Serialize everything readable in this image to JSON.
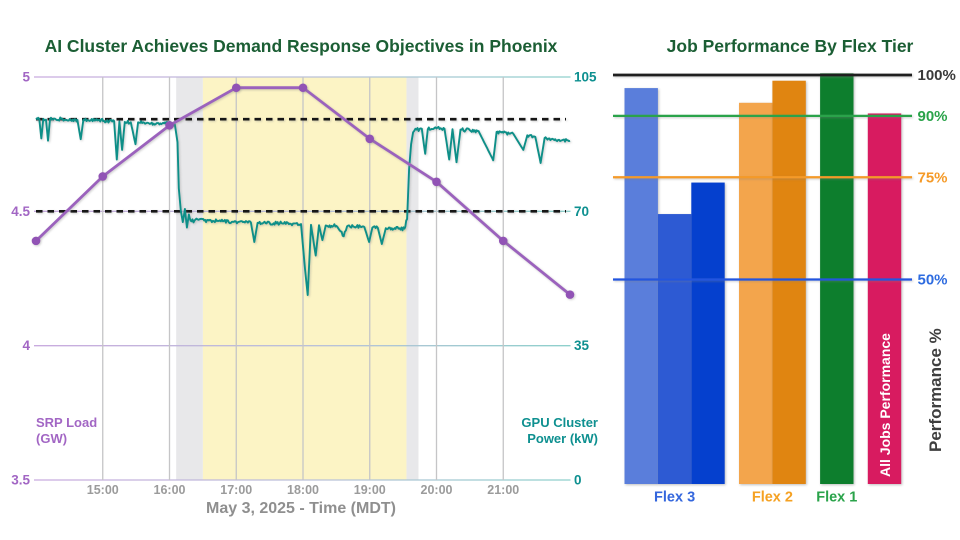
{
  "page": {
    "background": "#ffffff"
  },
  "chart_data": [
    {
      "type": "line",
      "title": "AI Cluster Achieves Demand Response Objectives in Phoenix",
      "title_color": "#1b5e34",
      "x_axis": {
        "title": "May 3, 2025 - Time (MDT)",
        "range_hours": [
          14,
          22
        ],
        "ticks": [
          {
            "hour": 15,
            "label": "15:00"
          },
          {
            "hour": 16,
            "label": "16:00"
          },
          {
            "hour": 17,
            "label": "17:00"
          },
          {
            "hour": 18,
            "label": "18:00"
          },
          {
            "hour": 19,
            "label": "19:00"
          },
          {
            "hour": 20,
            "label": "20:00"
          },
          {
            "hour": 21,
            "label": "21:00"
          }
        ],
        "tick_color": "#9b9b9b"
      },
      "left_axis": {
        "label1": "SRP Load",
        "label2": "(GW)",
        "color": "#a266c4",
        "range": [
          3.5,
          5
        ],
        "ticks": [
          {
            "v": 5,
            "label": "5"
          },
          {
            "v": 4.5,
            "label": "4.5"
          },
          {
            "v": 4,
            "label": "4"
          },
          {
            "v": 3.5,
            "label": "3.5"
          }
        ]
      },
      "right_axis": {
        "label1": "GPU Cluster",
        "label2": "Power (kW)",
        "color": "#0e9090",
        "range": [
          0,
          105
        ],
        "ticks": [
          {
            "v": 105,
            "label": "105"
          },
          {
            "v": 70,
            "label": "70"
          },
          {
            "v": 35,
            "label": "35"
          },
          {
            "v": 0,
            "label": "0"
          }
        ]
      },
      "bands": [
        {
          "from_hour": 16.1,
          "to_hour": 16.5,
          "color": "#e8e8ea"
        },
        {
          "from_hour": 16.5,
          "to_hour": 19.55,
          "color": "#fcf4c5"
        },
        {
          "from_hour": 19.55,
          "to_hour": 19.73,
          "color": "#e8e8ea"
        }
      ],
      "threshold_lines_kw": [
        94,
        70
      ],
      "series": [
        {
          "name": "SRP Load (GW)",
          "axis": "left",
          "color": "#9b62bd",
          "marker_color": "#9153b5",
          "x_hours": [
            14,
            15,
            16,
            17,
            18,
            19,
            20,
            21,
            22
          ],
          "values_gw": [
            4.39,
            4.63,
            4.82,
            4.96,
            4.96,
            4.77,
            4.61,
            4.39,
            4.19
          ]
        },
        {
          "name": "GPU Cluster Power (kW)",
          "axis": "right",
          "color": "#0e8f88",
          "noise_kw": 0.45,
          "points_hour_kw": [
            [
              14.0,
              94.3
            ],
            [
              14.05,
              94.0
            ],
            [
              14.08,
              89.0
            ],
            [
              14.11,
              94.1
            ],
            [
              14.15,
              93.9
            ],
            [
              14.18,
              88.4
            ],
            [
              14.21,
              94.0
            ],
            [
              14.3,
              93.9
            ],
            [
              14.38,
              94.1
            ],
            [
              14.46,
              93.8
            ],
            [
              14.55,
              93.9
            ],
            [
              14.62,
              93.8
            ],
            [
              14.67,
              88.8
            ],
            [
              14.71,
              93.9
            ],
            [
              14.82,
              93.7
            ],
            [
              14.92,
              93.7
            ],
            [
              15.02,
              93.6
            ],
            [
              15.1,
              93.5
            ],
            [
              15.17,
              93.5
            ],
            [
              15.21,
              83.5
            ],
            [
              15.25,
              93.4
            ],
            [
              15.29,
              86.0
            ],
            [
              15.33,
              93.3
            ],
            [
              15.42,
              93.2
            ],
            [
              15.49,
              87.5
            ],
            [
              15.53,
              93.2
            ],
            [
              15.62,
              93.1
            ],
            [
              15.72,
              92.9
            ],
            [
              15.82,
              93.0
            ],
            [
              15.92,
              92.9
            ],
            [
              16.02,
              93.0
            ],
            [
              16.08,
              92.7
            ],
            [
              16.12,
              88.0
            ],
            [
              16.14,
              76.0
            ],
            [
              16.17,
              70.2
            ],
            [
              16.2,
              67.2
            ],
            [
              16.23,
              70.6
            ],
            [
              16.26,
              65.8
            ],
            [
              16.29,
              69.2
            ],
            [
              16.33,
              67.4
            ],
            [
              16.42,
              67.9
            ],
            [
              16.52,
              67.6
            ],
            [
              16.65,
              67.5
            ],
            [
              16.8,
              67.4
            ],
            [
              16.95,
              67.3
            ],
            [
              17.1,
              67.2
            ],
            [
              17.22,
              67.1
            ],
            [
              17.27,
              62.0
            ],
            [
              17.32,
              67.0
            ],
            [
              17.5,
              67.0
            ],
            [
              17.68,
              66.9
            ],
            [
              17.85,
              66.8
            ],
            [
              17.97,
              66.7
            ],
            [
              18.03,
              55.0
            ],
            [
              18.07,
              48.2
            ],
            [
              18.12,
              66.5
            ],
            [
              18.19,
              58.5
            ],
            [
              18.24,
              66.4
            ],
            [
              18.29,
              62.5
            ],
            [
              18.34,
              66.3
            ],
            [
              18.5,
              66.2
            ],
            [
              18.61,
              63.5
            ],
            [
              18.66,
              66.1
            ],
            [
              18.8,
              66.0
            ],
            [
              18.92,
              65.9
            ],
            [
              18.99,
              62.0
            ],
            [
              19.04,
              65.8
            ],
            [
              19.12,
              65.7
            ],
            [
              19.18,
              61.5
            ],
            [
              19.24,
              65.6
            ],
            [
              19.33,
              65.6
            ],
            [
              19.43,
              65.5
            ],
            [
              19.52,
              65.5
            ],
            [
              19.56,
              68.0
            ],
            [
              19.59,
              81.0
            ],
            [
              19.62,
              87.5
            ],
            [
              19.65,
              90.6
            ],
            [
              19.7,
              91.3
            ],
            [
              19.78,
              91.5
            ],
            [
              19.83,
              85.0
            ],
            [
              19.87,
              91.4
            ],
            [
              20.0,
              91.6
            ],
            [
              20.12,
              91.5
            ],
            [
              20.19,
              83.5
            ],
            [
              20.24,
              91.4
            ],
            [
              20.3,
              82.8
            ],
            [
              20.36,
              91.3
            ],
            [
              20.5,
              91.1
            ],
            [
              20.63,
              90.9
            ],
            [
              20.85,
              83.3
            ],
            [
              20.9,
              90.7
            ],
            [
              21.0,
              90.5
            ],
            [
              21.15,
              90.2
            ],
            [
              21.3,
              86.0
            ],
            [
              21.36,
              89.8
            ],
            [
              21.48,
              89.4
            ],
            [
              21.56,
              82.6
            ],
            [
              21.62,
              89.1
            ],
            [
              21.75,
              88.8
            ],
            [
              21.88,
              88.5
            ],
            [
              22.0,
              88.4
            ]
          ]
        }
      ]
    },
    {
      "type": "bar",
      "title": "Job Performance By Flex Tier",
      "title_color": "#1b5e34",
      "y_label": "Performance %",
      "all_jobs_label": "All Jobs Performance",
      "ylim": [
        0,
        100
      ],
      "ref_lines": [
        {
          "value": 100,
          "label": "100%",
          "line_color": "#1f1f1f",
          "label_color": "#3a3a3a"
        },
        {
          "value": 90,
          "label": "90%",
          "line_color": "#2aa34a",
          "label_color": "#2aa34a"
        },
        {
          "value": 75,
          "label": "75%",
          "line_color": "#f59a28",
          "label_color": "#f59a28"
        },
        {
          "value": 50,
          "label": "50%",
          "line_color": "#2255e0",
          "label_color": "#2e6ce0"
        }
      ],
      "groups": [
        {
          "label": "Flex 3",
          "label_color": "#3366dd",
          "bars": [
            {
              "value": 96.8,
              "color": "#5a7edb"
            },
            {
              "value": 66.0,
              "color": "#2d5ad3"
            },
            {
              "value": 73.7,
              "color": "#0540ce"
            }
          ]
        },
        {
          "label": "Flex 2",
          "label_color": "#f5a122",
          "bars": [
            {
              "value": 93.2,
              "color": "#f3a54c"
            },
            {
              "value": 98.6,
              "color": "#e08511"
            }
          ]
        },
        {
          "label": "Flex 1",
          "label_color": "#2aa34a",
          "bars": [
            {
              "value": 100.4,
              "color": "#0d7e2d"
            }
          ]
        },
        {
          "label": "",
          "label_color": "#d81b60",
          "bars": [
            {
              "value": 90.6,
              "color": "#d81b60"
            }
          ]
        }
      ]
    }
  ]
}
